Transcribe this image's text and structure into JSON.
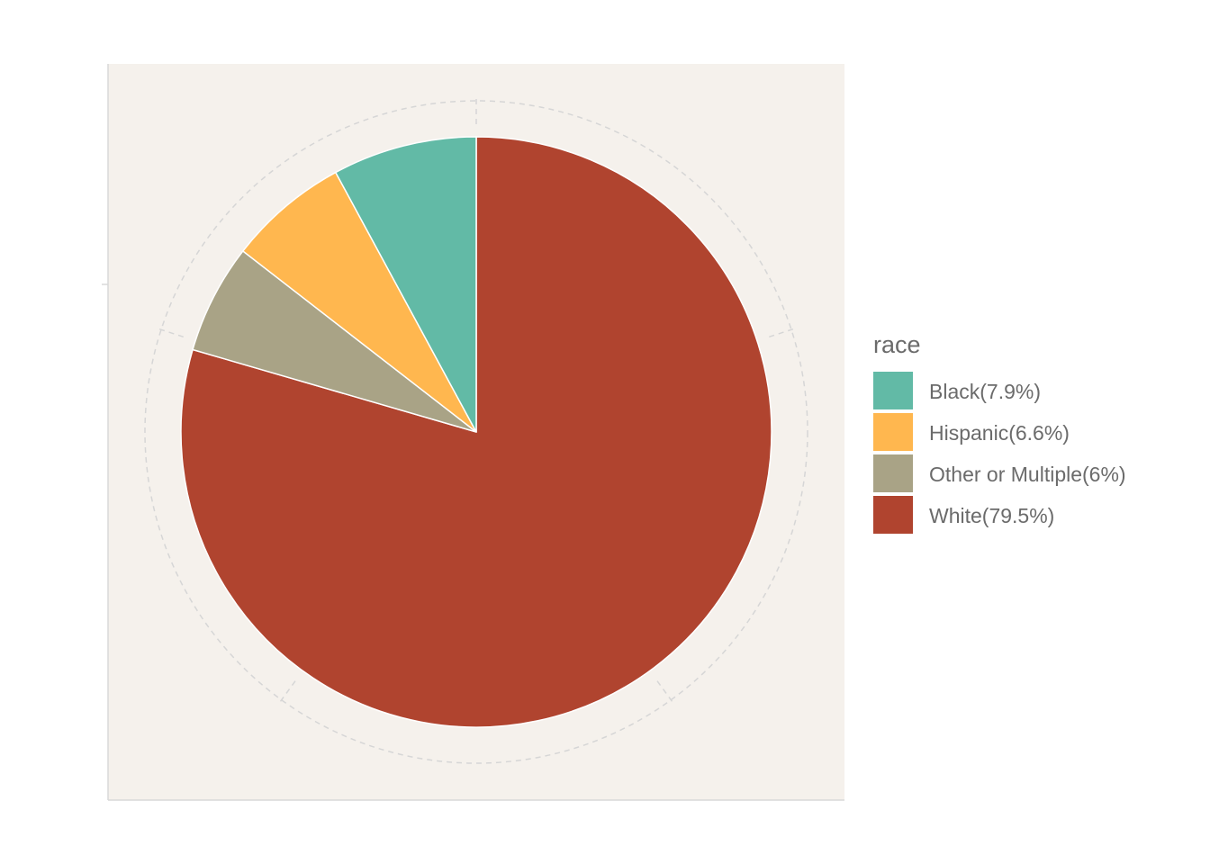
{
  "chart_data": {
    "type": "pie",
    "categories": [
      "Black(7.9%)",
      "Hispanic(6.6%)",
      "Other or Multiple(6%)",
      "White(79.5%)"
    ],
    "values": [
      7.9,
      6.6,
      6.0,
      79.5
    ],
    "colors": [
      "#62BAA6",
      "#FFB74F",
      "#A9A386",
      "#B0442F"
    ],
    "legend": {
      "title": "race",
      "placement": "right",
      "items": [
        {
          "label": "Black(7.9%)",
          "color": "#62BAA6"
        },
        {
          "label": "Hispanic(6.6%)",
          "color": "#FFB74F"
        },
        {
          "label": "Other or Multiple(6%)",
          "color": "#A9A386"
        },
        {
          "label": "White(79.5%)",
          "color": "#B0442F"
        }
      ]
    },
    "panel_background": "#F5F1EC",
    "grid": true
  }
}
